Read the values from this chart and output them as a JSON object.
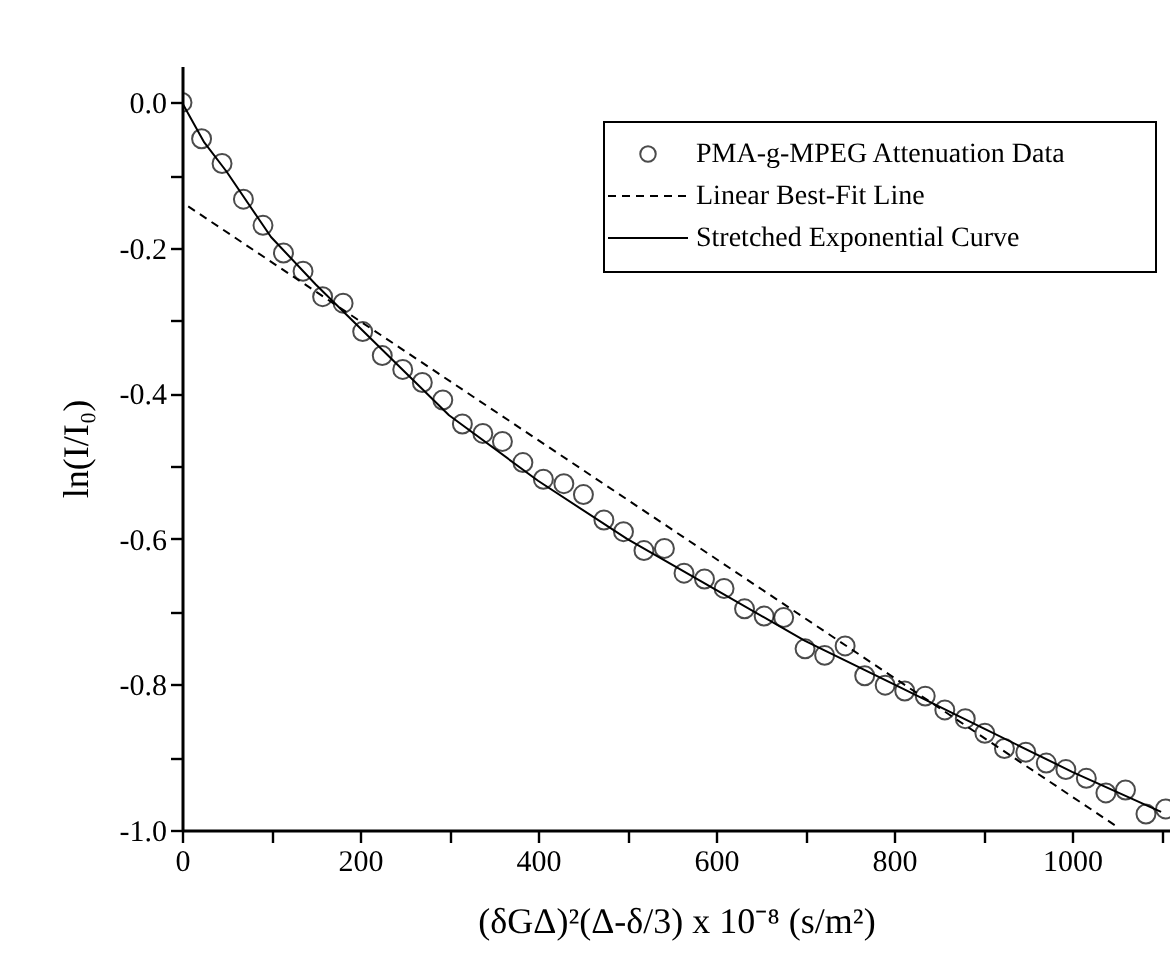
{
  "chart_data": {
    "type": "scatter",
    "xlabel": "(δGΔ)²(Δ-δ/3) x 10⁻⁸ (s/m²)",
    "ylabel": "ln(I/I₀)",
    "xlim": [
      0,
      1110
    ],
    "xticks": [
      0,
      {
        "value": 100,
        "label": null
      },
      200,
      {
        "value": 300,
        "label": null
      },
      400,
      {
        "value": 500,
        "label": null
      },
      600,
      {
        "value": 700,
        "label": null
      },
      800,
      {
        "value": 900,
        "label": null
      },
      1000,
      {
        "value": 1100,
        "label": null
      }
    ],
    "ylim": [
      -1.0,
      0.05
    ],
    "yticks": [
      {
        "value": 0,
        "label": "0.0"
      },
      {
        "value": -0.1,
        "label": null
      },
      -0.2,
      {
        "value": -0.3,
        "label": null
      },
      -0.4,
      {
        "value": -0.5,
        "label": null
      },
      -0.6,
      {
        "value": -0.7,
        "label": null
      },
      -0.8,
      {
        "value": -0.9,
        "label": null
      },
      {
        "value": -1.0,
        "label": "-1.0"
      }
    ],
    "grid": false,
    "legend": "top right",
    "series": [
      {
        "name": "PMA-g-MPEG Attenuation Data",
        "marker": "circle",
        "color": "#000000",
        "x": [
          0,
          22,
          45,
          69,
          91,
          114,
          136,
          158,
          181,
          203,
          225,
          248,
          270,
          293,
          315,
          338,
          360,
          383,
          406,
          429,
          451,
          474,
          496,
          519,
          542,
          564,
          587,
          609,
          632,
          654,
          676,
          700,
          722,
          745,
          767,
          790,
          812,
          835,
          857,
          880,
          902,
          924,
          948,
          971,
          993,
          1016,
          1038,
          1060,
          1083,
          1105
        ],
        "values": [
          0,
          -0.05,
          -0.084,
          -0.133,
          -0.169,
          -0.207,
          -0.232,
          -0.267,
          -0.276,
          -0.315,
          -0.348,
          -0.367,
          -0.385,
          -0.409,
          -0.442,
          -0.455,
          -0.466,
          -0.495,
          -0.518,
          -0.524,
          -0.539,
          -0.574,
          -0.59,
          -0.616,
          -0.613,
          -0.647,
          -0.655,
          -0.668,
          -0.696,
          -0.706,
          -0.708,
          -0.751,
          -0.76,
          -0.747,
          -0.788,
          -0.801,
          -0.809,
          -0.816,
          -0.835,
          -0.847,
          -0.867,
          -0.888,
          -0.893,
          -0.908,
          -0.917,
          -0.929,
          -0.949,
          -0.945,
          -0.978,
          -0.971
        ]
      },
      {
        "name": "Linear Best-Fit Line",
        "type": "line",
        "line_style": "dashed",
        "marker": "none",
        "color": "#000000",
        "x": [
          7,
          1050
        ],
        "values": [
          -0.143,
          -0.995
        ]
      },
      {
        "name": "Stretched Exponential Curve",
        "type": "line",
        "line_style": "solid",
        "marker": "none",
        "color": "#000000",
        "x": [
          0,
          25,
          50,
          100,
          150,
          200,
          300,
          400,
          500,
          600,
          700,
          800,
          900,
          1000,
          1100
        ],
        "values": [
          0,
          -0.055,
          -0.095,
          -0.185,
          -0.25,
          -0.31,
          -0.43,
          -0.52,
          -0.6,
          -0.67,
          -0.74,
          -0.8,
          -0.86,
          -0.92,
          -0.975
        ]
      }
    ]
  }
}
